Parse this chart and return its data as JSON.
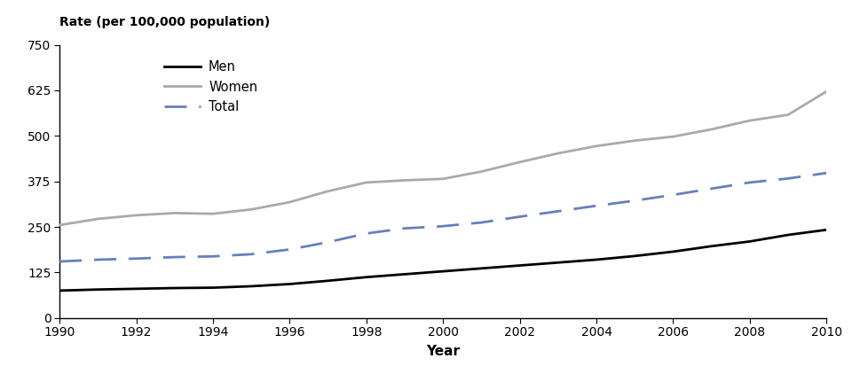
{
  "years": [
    1990,
    1991,
    1992,
    1993,
    1994,
    1995,
    1996,
    1997,
    1998,
    1999,
    2000,
    2001,
    2002,
    2003,
    2004,
    2005,
    2006,
    2007,
    2008,
    2009,
    2010
  ],
  "men": [
    75,
    78,
    80,
    82,
    83,
    87,
    93,
    102,
    112,
    120,
    128,
    136,
    144,
    152,
    160,
    170,
    182,
    197,
    210,
    228,
    242
  ],
  "women": [
    255,
    272,
    282,
    288,
    286,
    298,
    318,
    348,
    372,
    378,
    382,
    402,
    428,
    452,
    472,
    487,
    498,
    518,
    542,
    558,
    622
  ],
  "total": [
    155,
    160,
    163,
    167,
    169,
    175,
    188,
    208,
    232,
    246,
    252,
    262,
    278,
    293,
    308,
    322,
    338,
    355,
    372,
    383,
    398
  ],
  "men_color": "#000000",
  "women_color": "#aaaaaa",
  "total_color": "#6680bb",
  "xlabel": "Year",
  "ylabel": "Rate (per 100,000 population)",
  "ylim": [
    0,
    750
  ],
  "xlim": [
    1990,
    2010
  ],
  "yticks": [
    0,
    125,
    250,
    375,
    500,
    625,
    750
  ],
  "xticks": [
    1990,
    1992,
    1994,
    1996,
    1998,
    2000,
    2002,
    2004,
    2006,
    2008,
    2010
  ],
  "legend_labels": [
    "Men",
    "Women",
    "Total"
  ],
  "background_color": "#ffffff"
}
